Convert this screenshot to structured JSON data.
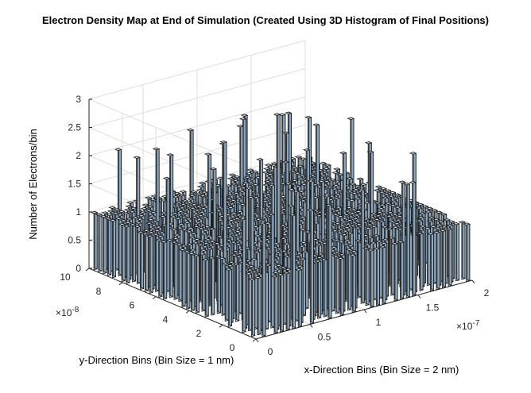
{
  "chart_data": {
    "type": "bar3d",
    "title": "Electron Density Map at End of Simulation (Created Using 3D Histogram of Final Positions)",
    "xlabel": "x-Direction Bins (Bin Size = 2 nm)",
    "ylabel": "y-Direction Bins (Bin Size = 1 nm)",
    "zlabel": "Number of Electrons/bin",
    "x_ticks": [
      "0",
      "0.5",
      "1",
      "1.5",
      "2"
    ],
    "x_exponent": "10",
    "x_exponent_power": "-7",
    "y_ticks": [
      "0",
      "2",
      "4",
      "6",
      "8",
      "10"
    ],
    "y_exponent": "10",
    "y_exponent_power": "-8",
    "z_ticks": [
      "0",
      "0.5",
      "1",
      "1.5",
      "2",
      "2.5",
      "3"
    ],
    "xlim": [
      0,
      2e-07
    ],
    "ylim": [
      0,
      1e-07
    ],
    "zlim": [
      0,
      3
    ],
    "bins_x": 100,
    "bins_y": 100,
    "bin_counts_present": [
      0,
      1,
      2,
      3
    ],
    "bar_color": "#b7cde1",
    "edge_color": "#1a1a1a",
    "grid": true
  }
}
